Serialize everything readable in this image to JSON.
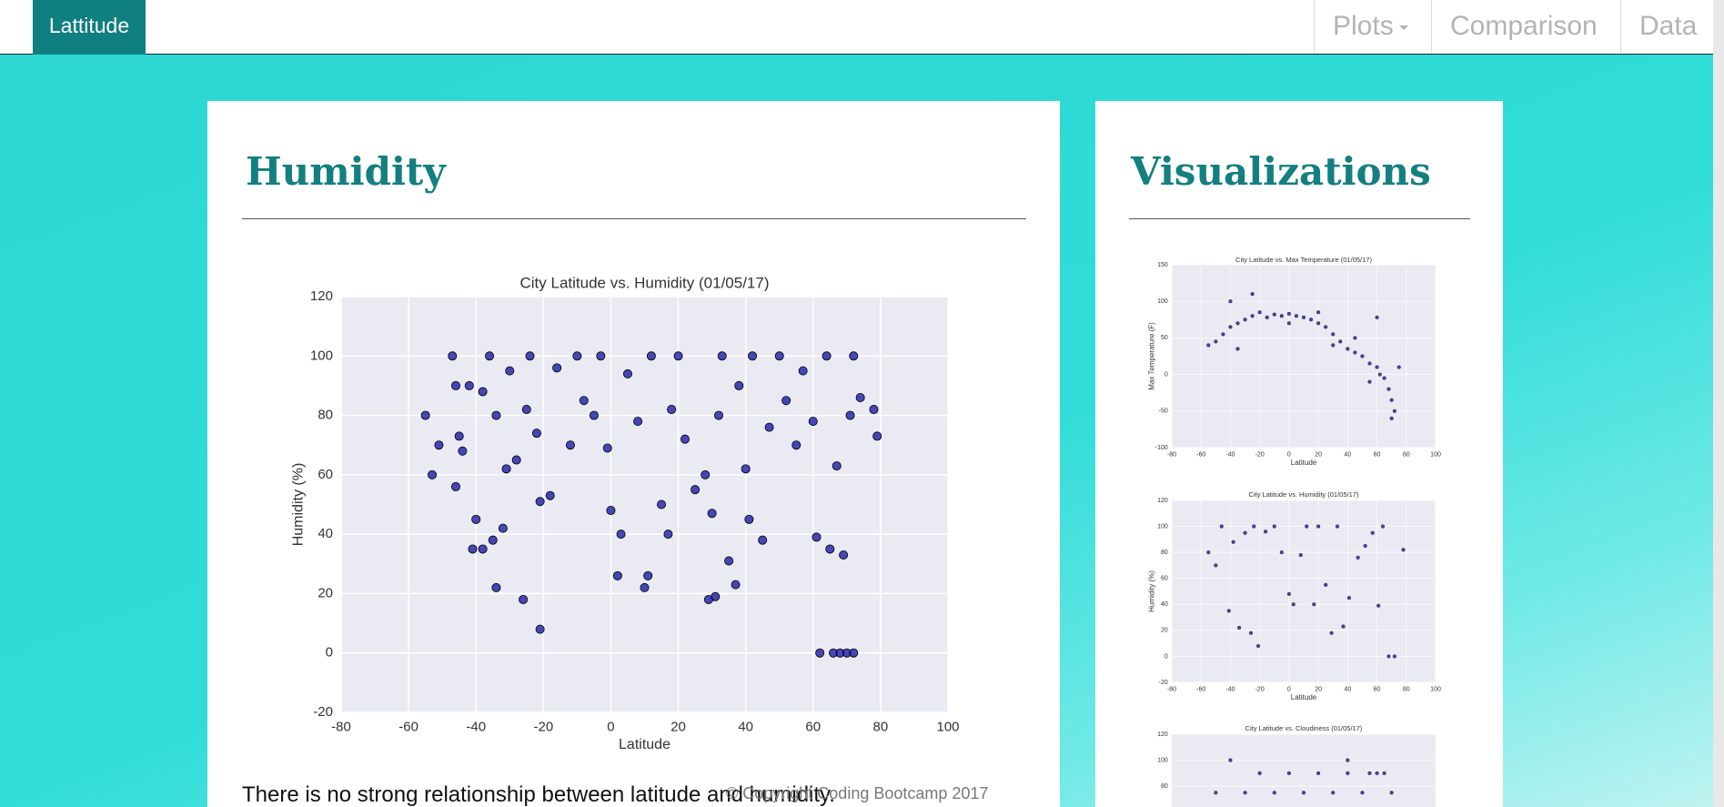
{
  "nav": {
    "brand": "Lattitude",
    "items": [
      "Plots",
      "Comparison",
      "Data"
    ]
  },
  "main": {
    "heading": "Humidity",
    "paragraph": "There is no strong relationship between latitude and humidity."
  },
  "sidebar": {
    "heading": "Visualizations"
  },
  "footer": "© Copyright Coding Bootcamp 2017",
  "chart_data": [
    {
      "type": "scatter",
      "title": "City Latitude vs. Humidity (01/05/17)",
      "xlabel": "Latitude",
      "ylabel": "Humidity (%)",
      "color": "#1c1ca8",
      "grid": true,
      "xlim": [
        -80,
        100
      ],
      "ylim": [
        -20,
        120
      ],
      "xticks": [
        -80,
        -60,
        -40,
        -20,
        0,
        20,
        40,
        60,
        80,
        100
      ],
      "yticks": [
        -20,
        0,
        20,
        40,
        60,
        80,
        100,
        120
      ],
      "x": [
        -55,
        -53,
        -51,
        -47,
        -46,
        -46,
        -45,
        -44,
        -42,
        -41,
        -40,
        -38,
        -38,
        -36,
        -35,
        -34,
        -34,
        -32,
        -31,
        -30,
        -28,
        -26,
        -25,
        -24,
        -22,
        -21,
        -21,
        -18,
        -16,
        -12,
        -10,
        -8,
        -5,
        -3,
        -1,
        0,
        2,
        3,
        5,
        8,
        10,
        11,
        12,
        15,
        17,
        18,
        20,
        22,
        25,
        28,
        29,
        30,
        31,
        32,
        33,
        35,
        37,
        38,
        40,
        41,
        42,
        45,
        47,
        50,
        52,
        55,
        57,
        60,
        61,
        62,
        64,
        65,
        66,
        67,
        68,
        69,
        70,
        71,
        72,
        72,
        74,
        78,
        79
      ],
      "values": [
        80,
        60,
        70,
        100,
        90,
        56,
        73,
        68,
        90,
        35,
        45,
        35,
        88,
        100,
        38,
        22,
        80,
        42,
        62,
        95,
        65,
        18,
        82,
        100,
        74,
        51,
        8,
        53,
        96,
        70,
        100,
        85,
        80,
        100,
        69,
        48,
        26,
        40,
        94,
        78,
        22,
        26,
        100,
        50,
        40,
        82,
        100,
        72,
        55,
        60,
        18,
        47,
        19,
        80,
        100,
        31,
        23,
        90,
        62,
        45,
        100,
        38,
        76,
        100,
        85,
        70,
        95,
        78,
        39,
        0,
        100,
        35,
        0,
        63,
        0,
        33,
        0,
        80,
        0,
        100,
        86,
        82,
        73
      ]
    },
    {
      "type": "scatter",
      "title": "City Latitude vs. Max Temperature (01/05/17)",
      "xlabel": "Latitude",
      "ylabel": "Max Temperature (F)",
      "color": "#1c1c90",
      "grid": true,
      "xlim": [
        -80,
        100
      ],
      "ylim": [
        -100,
        150
      ],
      "xticks": [
        -80,
        -60,
        -40,
        -20,
        0,
        20,
        40,
        60,
        80,
        100
      ],
      "yticks": [
        -100,
        -50,
        0,
        50,
        100,
        150
      ],
      "x": [
        -55,
        -50,
        -45,
        -40,
        -35,
        -30,
        -25,
        -20,
        -15,
        -10,
        -5,
        0,
        5,
        10,
        15,
        20,
        25,
        30,
        35,
        40,
        45,
        50,
        55,
        60,
        62,
        65,
        68,
        70,
        72,
        75,
        60,
        -40,
        -25,
        -35,
        45,
        70,
        55,
        30,
        20,
        0
      ],
      "values": [
        40,
        45,
        55,
        65,
        70,
        75,
        80,
        85,
        78,
        82,
        80,
        83,
        80,
        78,
        75,
        70,
        65,
        55,
        45,
        35,
        30,
        25,
        15,
        10,
        0,
        -5,
        -20,
        -35,
        -50,
        10,
        78,
        100,
        110,
        35,
        50,
        -60,
        -10,
        40,
        85,
        70
      ]
    },
    {
      "type": "scatter",
      "title": "City Latitude vs. Humidity (01/05/17)",
      "xlabel": "Latitude",
      "ylabel": "Humidity (%)",
      "color": "#1c1c90",
      "grid": true,
      "xlim": [
        -80,
        100
      ],
      "ylim": [
        -20,
        120
      ],
      "xticks": [
        -80,
        -60,
        -40,
        -20,
        0,
        20,
        40,
        60,
        80,
        100
      ],
      "yticks": [
        -20,
        0,
        20,
        40,
        60,
        80,
        100,
        120
      ],
      "x": [
        -55,
        -50,
        -46,
        -41,
        -38,
        -34,
        -30,
        -26,
        -24,
        -21,
        -16,
        -10,
        -5,
        0,
        3,
        8,
        12,
        17,
        20,
        25,
        29,
        33,
        37,
        41,
        47,
        52,
        57,
        61,
        64,
        68,
        72,
        78
      ],
      "values": [
        80,
        70,
        100,
        35,
        88,
        22,
        95,
        18,
        100,
        8,
        96,
        100,
        80,
        48,
        40,
        78,
        100,
        40,
        100,
        55,
        18,
        100,
        23,
        45,
        76,
        85,
        95,
        39,
        100,
        0,
        0,
        82
      ]
    },
    {
      "type": "scatter",
      "title": "City Latitude vs. Cloudiness (01/05/17)",
      "color": "#1c1c90",
      "grid": true,
      "xlim": [
        -80,
        100
      ],
      "ylim": [
        -20,
        120
      ],
      "yticks": [
        80,
        100,
        120
      ],
      "x": [
        -20,
        0,
        20,
        40,
        60,
        -30,
        -10,
        10,
        30,
        50,
        70,
        -40,
        40,
        55,
        -50,
        65
      ],
      "values": [
        90,
        90,
        90,
        90,
        90,
        75,
        75,
        75,
        75,
        75,
        75,
        100,
        100,
        90,
        75,
        90
      ]
    }
  ]
}
